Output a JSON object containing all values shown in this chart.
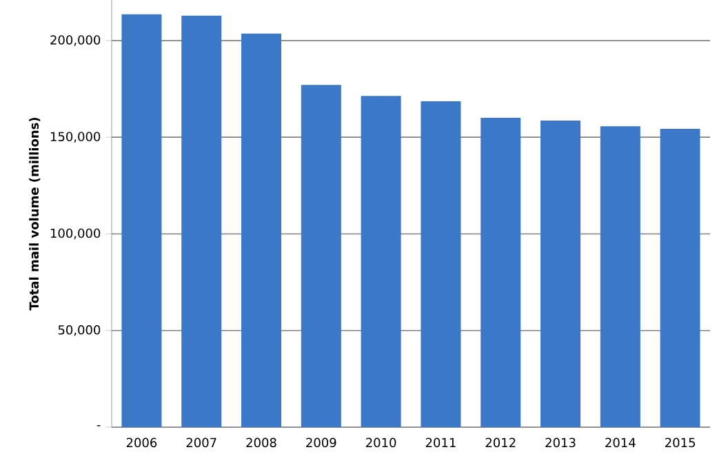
{
  "chart_data": {
    "type": "bar",
    "ylabel": "Total mail volume (millions)",
    "categories": [
      "2006",
      "2007",
      "2008",
      "2009",
      "2010",
      "2011",
      "2012",
      "2013",
      "2014",
      "2015"
    ],
    "values": [
      213600,
      212900,
      203600,
      177100,
      171400,
      168600,
      160000,
      158600,
      155700,
      154300
    ],
    "color": "#3b78c8",
    "ylim": [
      0,
      221000
    ],
    "yticks": [
      {
        "value": 0,
        "label": "-"
      },
      {
        "value": 50000,
        "label": "50,000"
      },
      {
        "value": 100000,
        "label": "100,000"
      },
      {
        "value": 150000,
        "label": "150,000"
      },
      {
        "value": 200000,
        "label": "200,000"
      }
    ],
    "grid": "y"
  }
}
